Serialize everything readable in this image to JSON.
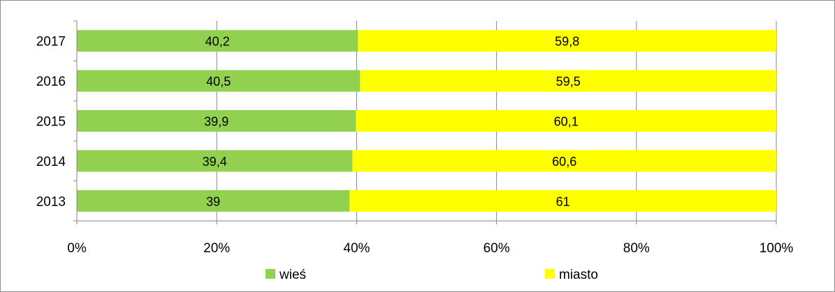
{
  "chart_data": {
    "type": "bar",
    "orientation": "horizontal",
    "stacked": "percent",
    "categories": [
      "2017",
      "2016",
      "2015",
      "2014",
      "2013"
    ],
    "series": [
      {
        "name": "wieś",
        "color": "#92D050",
        "values": [
          40.2,
          40.5,
          39.9,
          39.4,
          39
        ],
        "labels": [
          "40,2",
          "40,5",
          "39,9",
          "39,4",
          "39"
        ]
      },
      {
        "name": "miasto",
        "color": "#FFFF00",
        "values": [
          59.8,
          59.5,
          60.1,
          60.6,
          61
        ],
        "labels": [
          "59,8",
          "59,5",
          "60,1",
          "60,6",
          "61"
        ]
      }
    ],
    "x_ticks": [
      "0%",
      "20%",
      "40%",
      "60%",
      "80%",
      "100%"
    ],
    "xlim": [
      0,
      100
    ],
    "grid": "vertical",
    "legend": "bottom",
    "title": "",
    "xlabel": "",
    "ylabel": ""
  }
}
